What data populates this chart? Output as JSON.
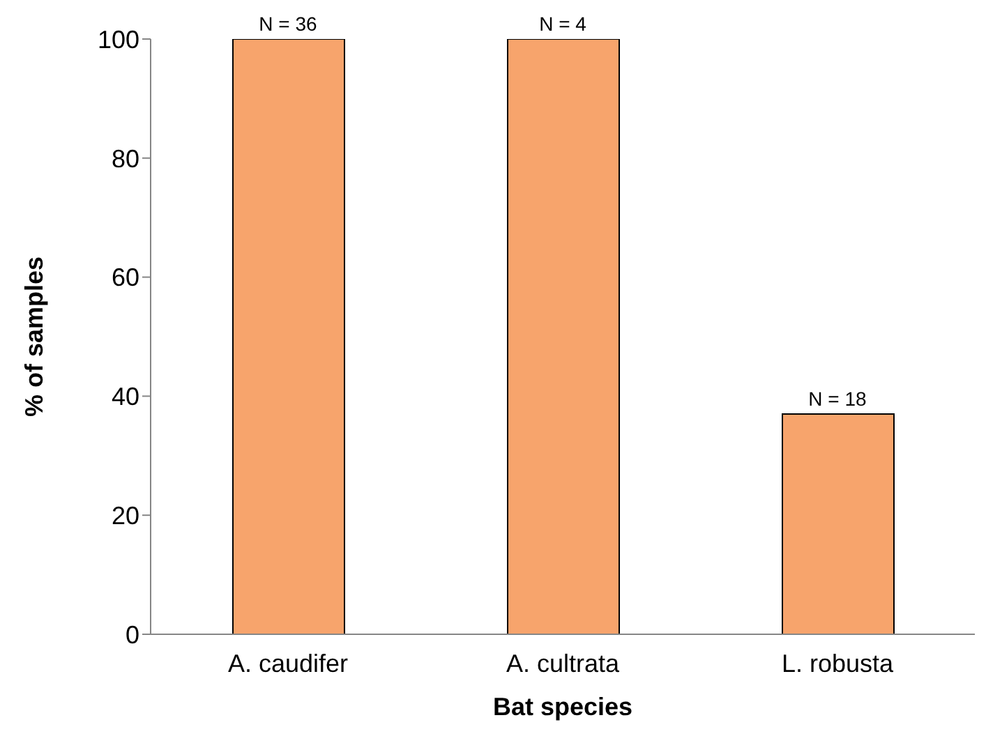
{
  "chart_data": {
    "type": "bar",
    "xlabel": "Bat species",
    "ylabel": "% of samples",
    "categories": [
      "A. caudifer",
      "A. cultrata",
      "L. robusta"
    ],
    "values": [
      100,
      100,
      37
    ],
    "annotations": [
      {
        "text": "N = 36",
        "x": "A. caudifer",
        "y": 100
      },
      {
        "text": "N = 4",
        "x": "A. cultrata",
        "y": 100
      },
      {
        "text": "N = 18",
        "x": "L. robusta",
        "y": 37
      }
    ],
    "color": "#f7a46c",
    "ylim": [
      0,
      100
    ],
    "yticks": [
      0,
      20,
      40,
      60,
      80,
      100
    ],
    "grid": false,
    "legend": false
  }
}
